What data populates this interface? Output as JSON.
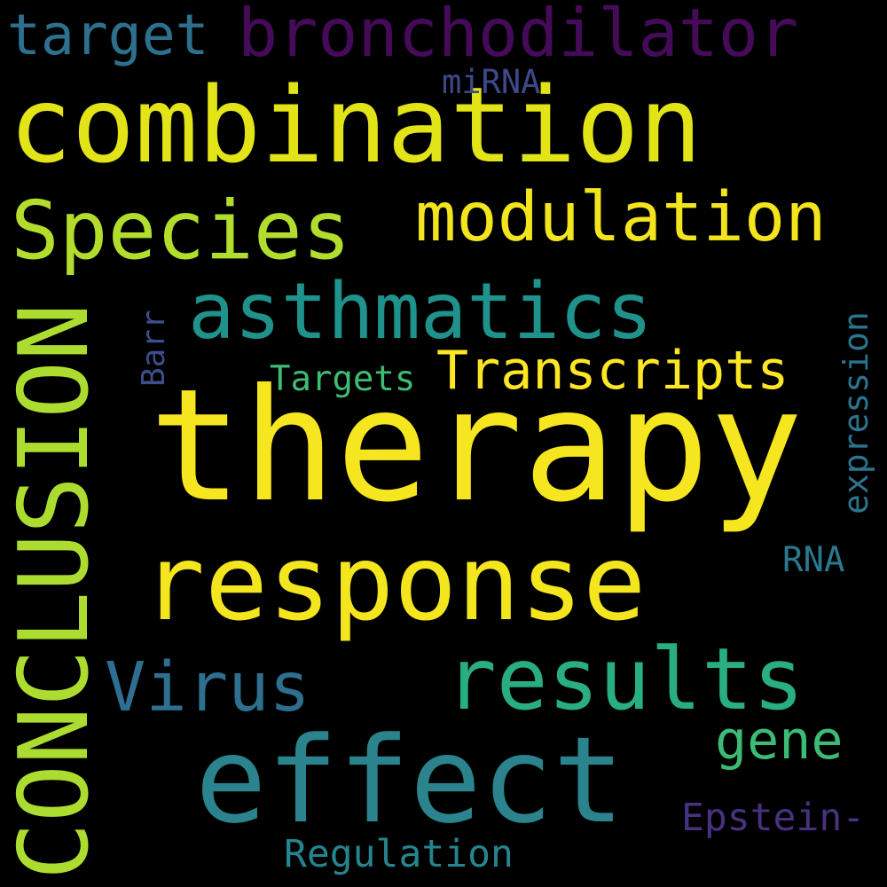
{
  "background": "#000000",
  "words": [
    {
      "key": "therapy",
      "text": "therapy",
      "color": "#f6e620",
      "orientation": "horizontal"
    },
    {
      "key": "response",
      "text": "response",
      "color": "#f4e61e",
      "orientation": "horizontal"
    },
    {
      "key": "combination",
      "text": "combination",
      "color": "#e2e418",
      "orientation": "horizontal"
    },
    {
      "key": "effect",
      "text": "effect",
      "color": "#2a838d",
      "orientation": "horizontal"
    },
    {
      "key": "conclusion",
      "text": "CONCLUSION",
      "color": "#addc30",
      "orientation": "vertical"
    },
    {
      "key": "asthmatics",
      "text": "asthmatics",
      "color": "#20928c",
      "orientation": "horizontal"
    },
    {
      "key": "results",
      "text": "results",
      "color": "#28ae80",
      "orientation": "horizontal"
    },
    {
      "key": "species",
      "text": "Species",
      "color": "#b3dd2c",
      "orientation": "horizontal"
    },
    {
      "key": "modulation",
      "text": "modulation",
      "color": "#f2e51d",
      "orientation": "horizontal"
    },
    {
      "key": "bronchodilator",
      "text": "bronchodilator",
      "color": "#450b59",
      "orientation": "horizontal"
    },
    {
      "key": "virus",
      "text": "Virus",
      "color": "#2e6e8e",
      "orientation": "horizontal"
    },
    {
      "key": "target",
      "text": "target",
      "color": "#2d708e",
      "orientation": "horizontal"
    },
    {
      "key": "transcripts",
      "text": "Transcripts",
      "color": "#fde725",
      "orientation": "horizontal"
    },
    {
      "key": "gene",
      "text": "gene",
      "color": "#3bbb75",
      "orientation": "horizontal"
    },
    {
      "key": "epstein",
      "text": "Epstein-",
      "color": "#46327e",
      "orientation": "horizontal"
    },
    {
      "key": "regulation",
      "text": "Regulation",
      "color": "#25848e",
      "orientation": "horizontal"
    },
    {
      "key": "expression",
      "text": "expression",
      "color": "#2c738e",
      "orientation": "vertical"
    },
    {
      "key": "targets",
      "text": "Targets",
      "color": "#3fbc73",
      "orientation": "horizontal"
    },
    {
      "key": "rna",
      "text": "RNA",
      "color": "#2a788e",
      "orientation": "horizontal"
    },
    {
      "key": "mirna",
      "text": "miRNA",
      "color": "#3e4989",
      "orientation": "horizontal"
    },
    {
      "key": "barr",
      "text": "Barr",
      "color": "#3d4e8a",
      "orientation": "vertical"
    }
  ]
}
